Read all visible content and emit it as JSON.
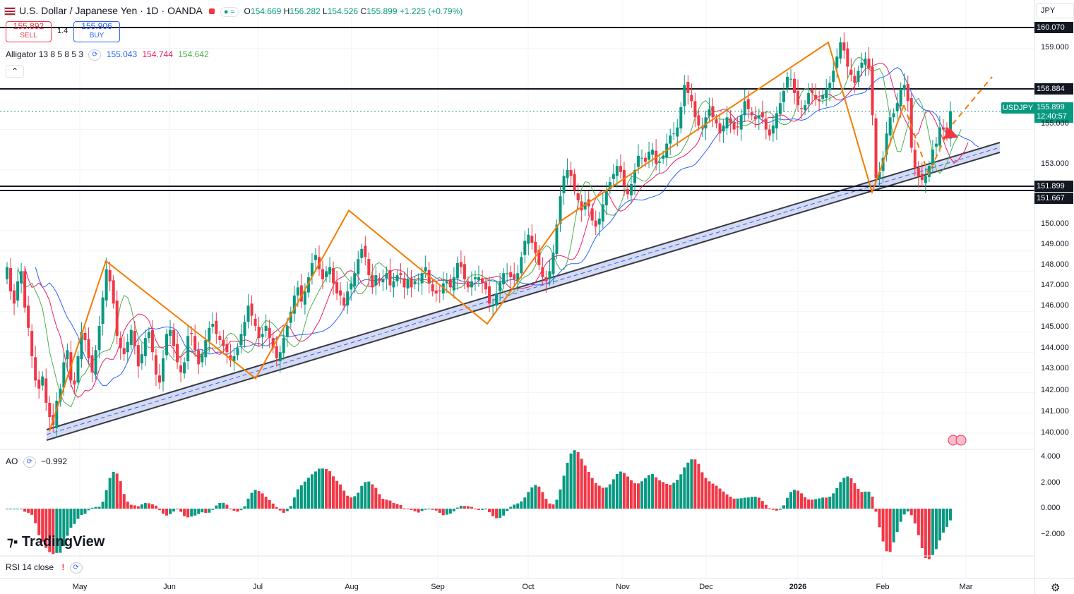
{
  "header": {
    "symbol_title": "U.S. Dollar / Japanese Yen · 1D · OANDA",
    "ohlc": {
      "o_label": "O",
      "o": "154.669",
      "h_label": "H",
      "h": "156.282",
      "l_label": "L",
      "l": "154.526",
      "c_label": "C",
      "c": "155.899",
      "change": "+1.225 (+0.79%)"
    },
    "sell_price": "155.892",
    "sell_label": "SELL",
    "spread": "1.4",
    "buy_price": "155.906",
    "buy_label": "BUY",
    "currency": "JPY"
  },
  "indicators": {
    "alligator_label": "Alligator 13 8 5 8 5 3",
    "alligator_jaw": "155.043",
    "alligator_teeth": "154.744",
    "alligator_lips": "154.642",
    "ao_label": "AO",
    "ao_value": "−0.992",
    "rsi_label": "RSI 14 close",
    "rsi_warning": "!"
  },
  "price_labels": {
    "top_line": "160.070",
    "resistance": "156.884",
    "symbol": "USDJPY",
    "current": "155.899",
    "countdown": "12:40:57",
    "support_1": "151.899",
    "support_2": "151.667"
  },
  "price_axis": [
    "159.000",
    "155.000",
    "153.000",
    "150.000",
    "149.000",
    "148.000",
    "147.000",
    "146.000",
    "145.000",
    "144.000",
    "143.000",
    "142.000",
    "141.000",
    "140.000"
  ],
  "ao_axis": [
    "4.000",
    "2.000",
    "0.000",
    "−2.000"
  ],
  "time_axis": [
    "May",
    "Jun",
    "Jul",
    "Aug",
    "Sep",
    "Oct",
    "Nov",
    "Dec",
    "2026",
    "Feb",
    "Mar"
  ],
  "branding": "TradingView",
  "colors": {
    "up": "#089981",
    "down": "#f23645",
    "jaw": "#2962ff",
    "teeth": "#e91e63",
    "lips": "#4caf50",
    "zigzag": "#f57c00",
    "channel_fill": "#c5cae9"
  },
  "chart_data": {
    "type": "candlestick",
    "title": "U.S. Dollar / Japanese Yen · 1D · OANDA",
    "price_range": [
      139.5,
      161.1
    ],
    "ao_range": [
      -3.6,
      4.2
    ],
    "closes": [
      148.2,
      147.0,
      146.4,
      147.5,
      148.0,
      146.2,
      145.2,
      143.8,
      142.6,
      142.2,
      142.8,
      141.5,
      140.8,
      140.4,
      141.6,
      142.2,
      143.5,
      144.1,
      142.6,
      142.4,
      143.8,
      145.0,
      144.6,
      143.7,
      143.0,
      144.1,
      145.3,
      146.7,
      148.1,
      147.5,
      146.4,
      144.8,
      144.2,
      143.9,
      144.5,
      145.1,
      144.3,
      143.3,
      143.9,
      144.7,
      145.0,
      144.0,
      142.9,
      142.5,
      143.7,
      144.9,
      145.1,
      144.3,
      143.5,
      143.0,
      143.5,
      144.8,
      144.9,
      144.1,
      143.4,
      143.9,
      144.6,
      145.2,
      145.4,
      144.9,
      144.6,
      144.3,
      144.0,
      143.6,
      143.8,
      144.2,
      144.9,
      145.5,
      146.3,
      145.8,
      145.3,
      144.7,
      144.9,
      145.3,
      144.7,
      144.2,
      143.7,
      144.0,
      144.7,
      145.3,
      146.0,
      146.8,
      147.2,
      146.5,
      147.0,
      147.7,
      148.4,
      148.8,
      148.1,
      147.6,
      148.0,
      148.2,
      147.4,
      146.9,
      146.8,
      146.3,
      147.0,
      147.4,
      147.9,
      148.6,
      149.1,
      148.7,
      147.8,
      147.2,
      147.8,
      147.5,
      147.6,
      147.9,
      147.3,
      147.5,
      147.8,
      147.8,
      147.2,
      147.6,
      147.2,
      147.5,
      147.4,
      147.9,
      148.2,
      147.4,
      147.0,
      146.9,
      147.0,
      147.4,
      147.5,
      147.2,
      147.7,
      148.4,
      148.2,
      147.6,
      147.2,
      147.5,
      147.7,
      147.7,
      147.4,
      147.1,
      146.4,
      146.3,
      146.9,
      147.5,
      147.9,
      147.9,
      147.7,
      147.6,
      147.9,
      148.7,
      149.5,
      149.8,
      149.4,
      148.9,
      148.3,
      147.7,
      147.5,
      148.0,
      148.9,
      150.3,
      151.7,
      152.7,
      153.0,
      152.7,
      152.0,
      151.5,
      151.0,
      151.4,
      151.2,
      150.5,
      150.2,
      150.6,
      151.3,
      152.0,
      152.4,
      152.8,
      153.2,
      152.9,
      152.2,
      151.8,
      152.3,
      153.0,
      153.7,
      153.6,
      153.4,
      153.9,
      154.0,
      153.3,
      153.4,
      153.7,
      154.3,
      154.7,
      154.8,
      155.1,
      156.1,
      157.2,
      156.8,
      156.4,
      155.6,
      155.2,
      155.1,
      155.6,
      156.0,
      155.6,
      155.3,
      154.8,
      155.2,
      155.6,
      155.3,
      155.0,
      155.1,
      155.7,
      156.4,
      156.0,
      155.7,
      155.5,
      155.7,
      155.6,
      155.0,
      154.7,
      155.2,
      155.8,
      156.3,
      156.9,
      157.6,
      157.5,
      156.8,
      156.2,
      156.0,
      156.2,
      156.8,
      156.8,
      156.5,
      156.4,
      156.7,
      157.0,
      157.3,
      157.9,
      158.6,
      159.3,
      158.9,
      158.1,
      157.7,
      157.3,
      157.9,
      158.3,
      158.5,
      158.0,
      155.7,
      152.6,
      152.9,
      153.6,
      154.8,
      155.6,
      155.8,
      156.3,
      157.0,
      157.2,
      156.4,
      154.1,
      153.1,
      152.7,
      152.5,
      152.7,
      153.2,
      154.0,
      154.3,
      155.1,
      155.0,
      154.7,
      155.9
    ],
    "series": [
      {
        "name": "Alligator Jaw",
        "last": "155.043"
      },
      {
        "name": "Alligator Teeth",
        "last": "154.744"
      },
      {
        "name": "Alligator Lips",
        "last": "154.642"
      },
      {
        "name": "Awesome Oscillator",
        "last": "−0.992"
      }
    ],
    "horizontal_levels": [
      160.07,
      156.884,
      151.899,
      151.667
    ],
    "current_price": 155.899,
    "zigzag": [
      140.1,
      148.5,
      142.7,
      151.0,
      145.4,
      150.5,
      159.3,
      151.9,
      156.2,
      152.8,
      155.1
    ]
  }
}
